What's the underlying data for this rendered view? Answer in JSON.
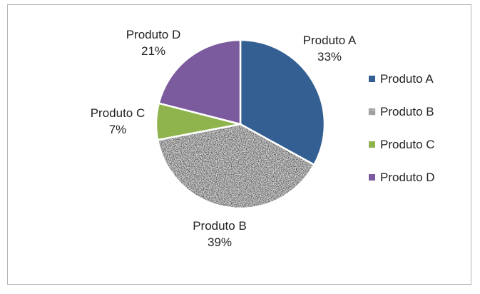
{
  "chart_data": {
    "type": "pie",
    "title": "",
    "categories": [
      "Produto A",
      "Produto B",
      "Produto C",
      "Produto D"
    ],
    "values": [
      33,
      39,
      7,
      21
    ],
    "value_labels": [
      "33%",
      "39%",
      "7%",
      "21%"
    ],
    "colors": [
      "#335f92",
      "#a8a8a8",
      "#8fb44e",
      "#7b5a9e"
    ],
    "patterns": [
      "solid",
      "noise-texture",
      "solid",
      "solid"
    ],
    "legend_position": "right",
    "start_angle_deg": 0,
    "direction": "clockwise"
  }
}
